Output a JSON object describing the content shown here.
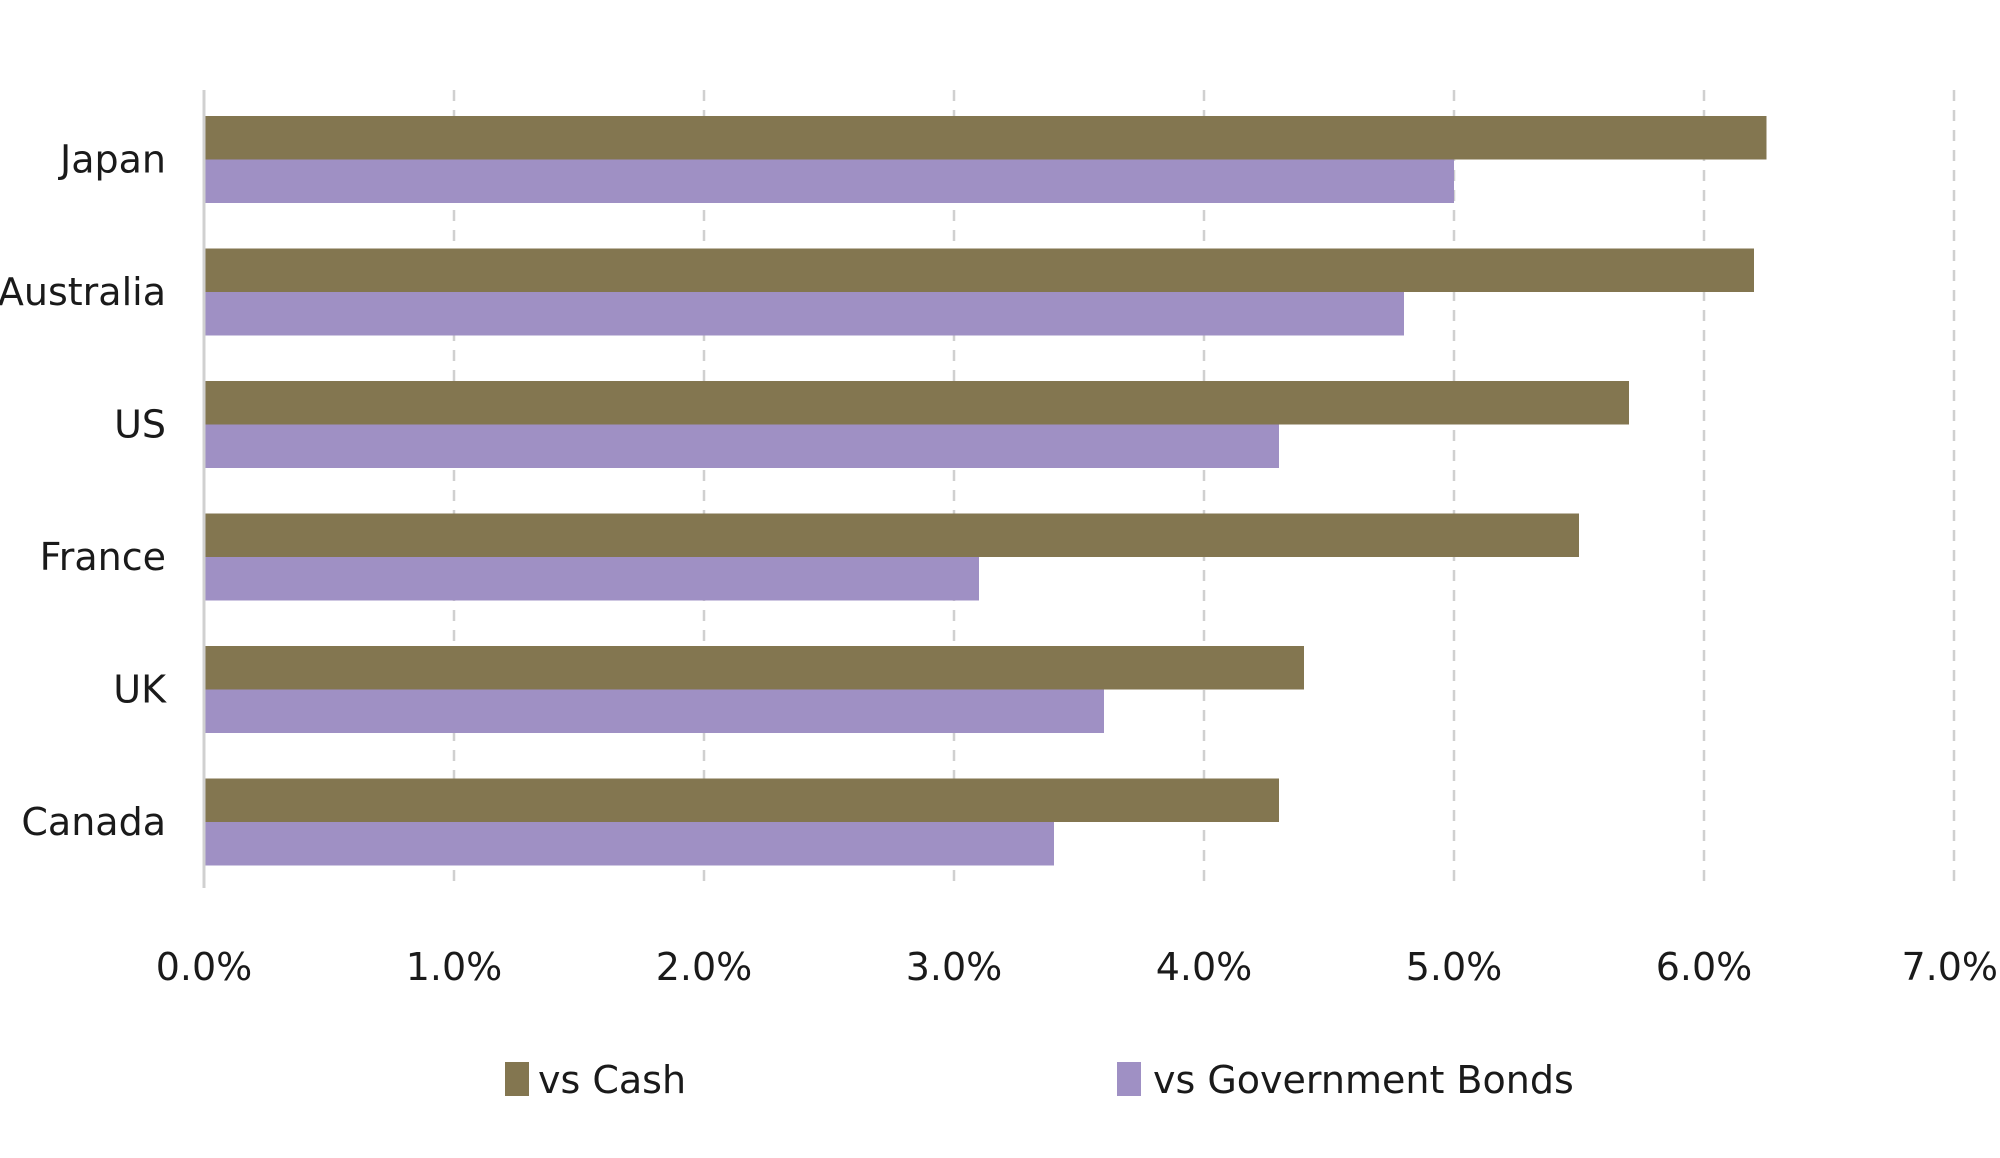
{
  "chart_data": {
    "type": "bar",
    "orientation": "horizontal",
    "categories": [
      "Japan",
      "Australia",
      "US",
      "France",
      "UK",
      "Canada"
    ],
    "series": [
      {
        "name": "vs Cash",
        "color": "#837650",
        "values": [
          6.25,
          6.2,
          5.7,
          5.5,
          4.4,
          4.3
        ]
      },
      {
        "name": "vs Government Bonds",
        "color": "#9f90c4",
        "values": [
          5.0,
          4.8,
          4.3,
          3.1,
          3.6,
          3.4
        ]
      }
    ],
    "xlim": [
      0,
      7
    ],
    "x_ticks": [
      "0.0%",
      "1.0%",
      "2.0%",
      "3.0%",
      "4.0%",
      "5.0%",
      "6.0%",
      "7.0%"
    ],
    "grid": true,
    "legend_position": "bottom"
  }
}
